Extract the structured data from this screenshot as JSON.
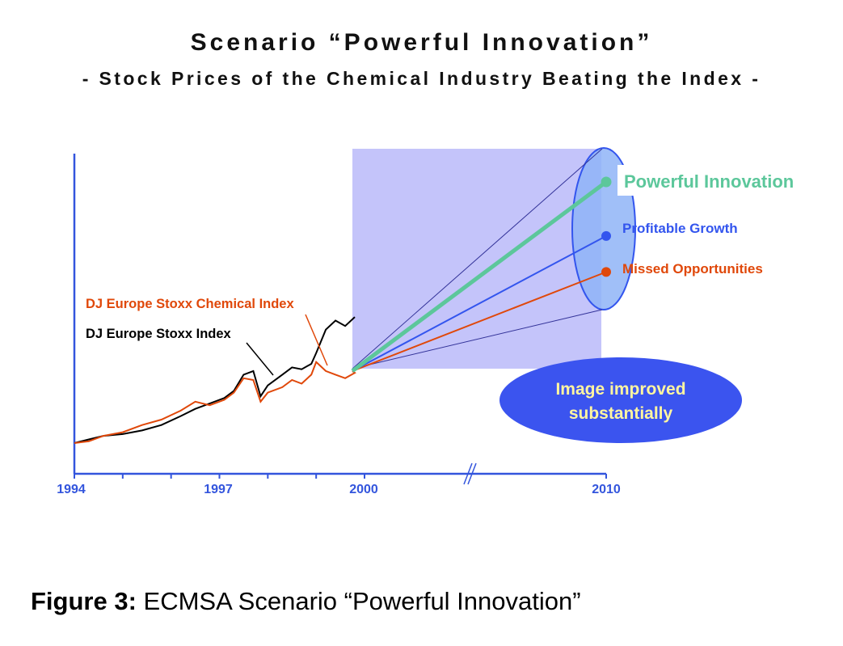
{
  "title": "Scenario “Powerful Innovation”",
  "subtitle": "- Stock Prices of the Chemical Industry Beating the Index -",
  "caption": {
    "label": "Figure 3:",
    "text": "ECMSA Scenario “Powerful Innovation”"
  },
  "colors": {
    "axis": "#3355dd",
    "index_line": "#000000",
    "chemical_line": "#e0480a",
    "highlight_box": "#c4c4fa",
    "powerful": "#5cc79b",
    "profitable": "#3355ee",
    "missed": "#e0480a",
    "ellipse_fill": "#8fb4f7",
    "callout_fill": "#3b54ef",
    "callout_text": "#fff5a0"
  },
  "chart_data": {
    "type": "line",
    "x_ticks": [
      "1994",
      "1997",
      "2000",
      "2010"
    ],
    "x_axis_break": true,
    "series": [
      {
        "name": "DJ Europe Stoxx Index",
        "x": [
          1994.0,
          1994.3,
          1994.6,
          1995.0,
          1995.4,
          1995.8,
          1996.2,
          1996.5,
          1996.8,
          1997.1,
          1997.3,
          1997.5,
          1997.7,
          1997.85,
          1998.0,
          1998.3,
          1998.5,
          1998.7,
          1998.9,
          1999.0,
          1999.2,
          1999.4,
          1999.6,
          1999.8
        ],
        "values": [
          100,
          102,
          104,
          105,
          107,
          110,
          115,
          119,
          122,
          125,
          129,
          138,
          140,
          126,
          132,
          138,
          142,
          141,
          144,
          150,
          163,
          168,
          165,
          170
        ]
      },
      {
        "name": "DJ Europe Stoxx Chemical Index",
        "x": [
          1994.0,
          1994.3,
          1994.6,
          1995.0,
          1995.4,
          1995.8,
          1996.2,
          1996.5,
          1996.8,
          1997.1,
          1997.3,
          1997.5,
          1997.7,
          1997.85,
          1998.0,
          1998.3,
          1998.5,
          1998.7,
          1998.9,
          1999.0,
          1999.2,
          1999.4,
          1999.6,
          1999.8,
          2000.0
        ],
        "values": [
          100,
          101,
          104,
          106,
          110,
          113,
          118,
          123,
          121,
          124,
          128,
          136,
          135,
          123,
          128,
          131,
          135,
          133,
          138,
          145,
          140,
          138,
          136,
          139,
          140
        ]
      },
      {
        "name": "Powerful Innovation",
        "x": [
          2000,
          2010
        ],
        "values": [
          140,
          245
        ]
      },
      {
        "name": "Profitable Growth",
        "x": [
          2000,
          2010
        ],
        "values": [
          140,
          215
        ]
      },
      {
        "name": "Missed Opportunities",
        "x": [
          2000,
          2010
        ],
        "values": [
          140,
          195
        ]
      }
    ],
    "annotations": {
      "chem_label": "DJ Europe Stoxx Chemical Index",
      "index_label": "DJ Europe Stoxx Index",
      "powerful": "Powerful Innovation",
      "profitable": "Profitable Growth",
      "missed": "Missed Opportunities",
      "callout_line1": "Image improved",
      "callout_line2": "substantially"
    }
  }
}
